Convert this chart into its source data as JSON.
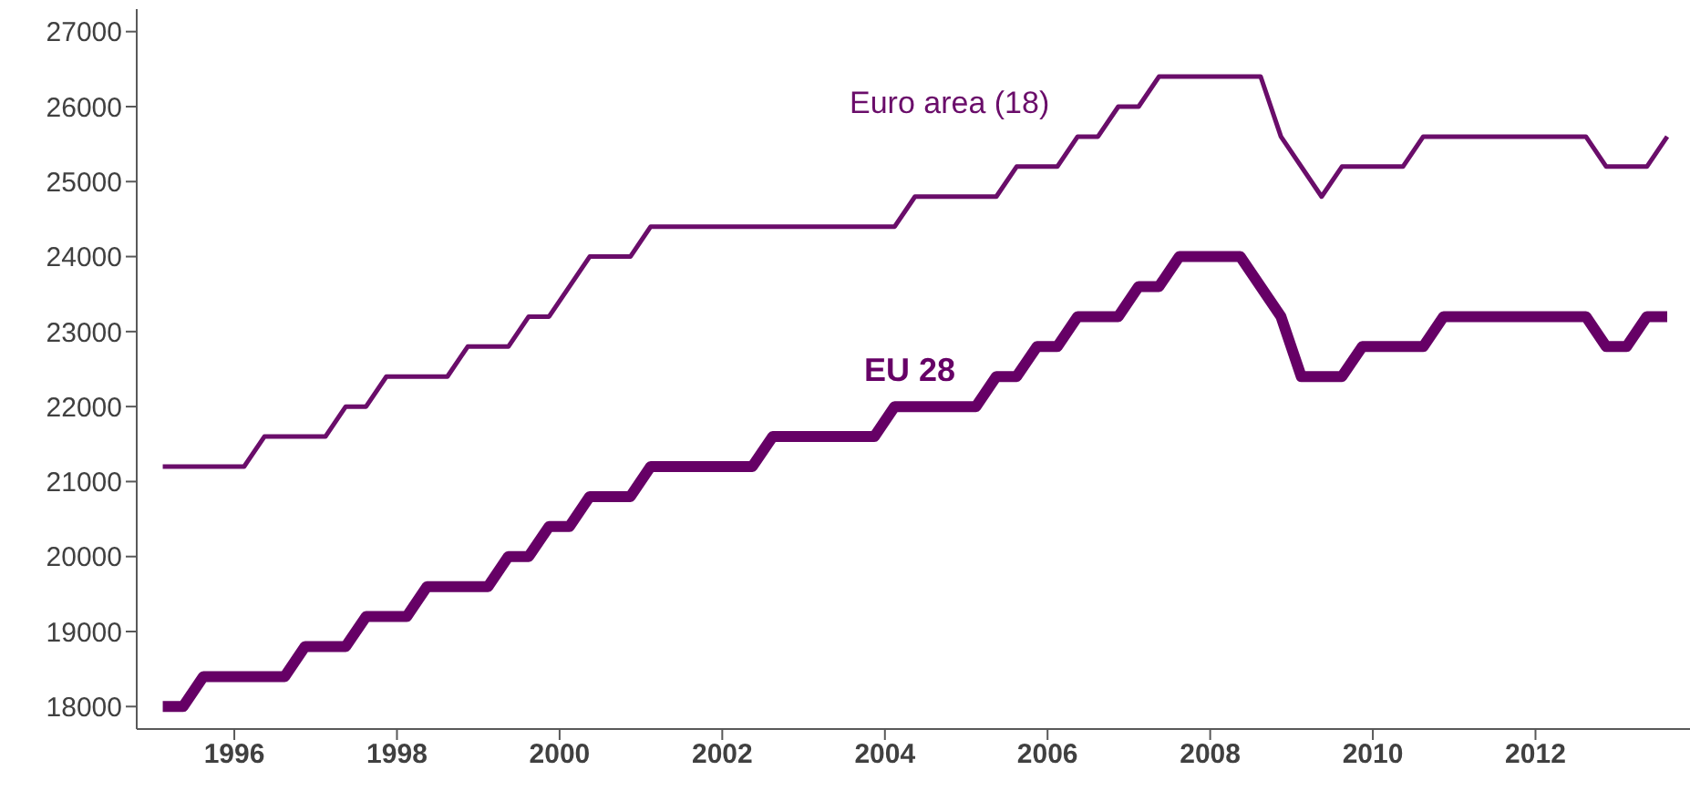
{
  "chart_data": {
    "type": "line",
    "xlim": [
      1994.8,
      2013.9
    ],
    "xticks": [
      1996,
      1998,
      2000,
      2002,
      2004,
      2006,
      2008,
      2010,
      2012
    ],
    "ylim": [
      17700,
      27300
    ],
    "yticks": [
      18000,
      19000,
      20000,
      21000,
      22000,
      23000,
      24000,
      25000,
      26000,
      27000
    ],
    "grid": false,
    "legend": false,
    "marker": "none",
    "line_style": "solid",
    "series": [
      {
        "name": "Euro area (18)",
        "color": "#6a0d6a",
        "x": [
          1995.12,
          1996.12,
          1996.37,
          1997.12,
          1997.37,
          1997.62,
          1997.87,
          1998.62,
          1998.87,
          1999.37,
          1999.62,
          1999.87,
          2000.37,
          2000.87,
          2001.12,
          2004.12,
          2004.37,
          2005.37,
          2005.62,
          2006.12,
          2006.37,
          2006.62,
          2006.87,
          2007.12,
          2007.37,
          2008.62,
          2008.87,
          2009.37,
          2009.62,
          2010.37,
          2010.62,
          2012.62,
          2012.87,
          2013.37,
          2013.62
        ],
        "values": [
          21200,
          21200,
          21600,
          21600,
          22000,
          22000,
          22400,
          22400,
          22800,
          22800,
          23200,
          23200,
          24000,
          24000,
          24400,
          24400,
          24800,
          24800,
          25200,
          25200,
          25600,
          25600,
          26000,
          26000,
          26400,
          26400,
          25600,
          24800,
          25200,
          25200,
          25600,
          25600,
          25200,
          25200,
          25600
        ]
      },
      {
        "name": "EU 28",
        "color": "#660066",
        "x": [
          1995.12,
          1995.37,
          1995.62,
          1996.62,
          1996.87,
          1997.37,
          1997.62,
          1998.12,
          1998.37,
          1999.12,
          1999.37,
          1999.62,
          1999.87,
          2000.12,
          2000.37,
          2000.87,
          2001.12,
          2002.37,
          2002.62,
          2003.87,
          2004.12,
          2005.12,
          2005.37,
          2005.62,
          2005.87,
          2006.12,
          2006.37,
          2006.87,
          2007.12,
          2007.37,
          2007.62,
          2008.37,
          2008.87,
          2009.12,
          2009.62,
          2009.87,
          2010.62,
          2010.87,
          2012.62,
          2012.87,
          2013.12,
          2013.37,
          2013.62
        ],
        "values": [
          18000,
          18000,
          18400,
          18400,
          18800,
          18800,
          19200,
          19200,
          19600,
          19600,
          20000,
          20000,
          20400,
          20400,
          20800,
          20800,
          21200,
          21200,
          21600,
          21600,
          22000,
          22000,
          22400,
          22400,
          22800,
          22800,
          23200,
          23200,
          23600,
          23600,
          24000,
          24000,
          23200,
          22400,
          22400,
          22800,
          22800,
          23200,
          23200,
          22800,
          22800,
          23200,
          23200
        ]
      }
    ]
  }
}
